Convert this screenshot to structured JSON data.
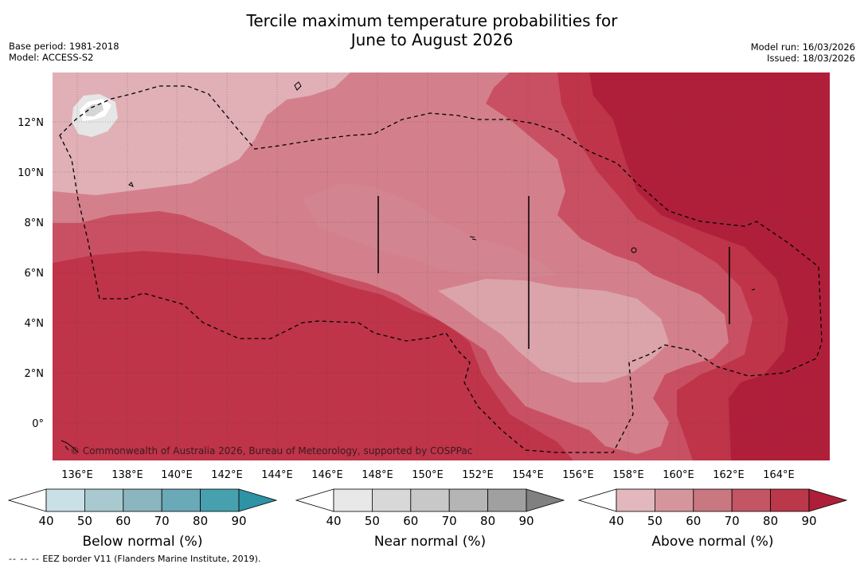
{
  "title": {
    "line1": "Tercile maximum temperature probabilities for",
    "line2": "June to August 2026"
  },
  "meta": {
    "base_period": "Base period: 1981-2018",
    "model": "Model: ACCESS-S2",
    "model_run": "Model run: 16/03/2026",
    "issued": "Issued: 18/03/2026"
  },
  "map": {
    "copyright": "© Commonwealth of Australia 2026, Bureau of Meteorology, supported by COSPPac",
    "lon_labels": [
      "136°E",
      "138°E",
      "140°E",
      "142°E",
      "144°E",
      "146°E",
      "148°E",
      "150°E",
      "152°E",
      "154°E",
      "156°E",
      "158°E",
      "160°E",
      "162°E",
      "164°E"
    ],
    "lat_labels": [
      "12°N",
      "10°N",
      "8°N",
      "6°N",
      "4°N",
      "2°N",
      "0°"
    ],
    "colors": {
      "ocean_90": "#b01f3a",
      "above_80": "#bf3448",
      "above_70": "#c95062",
      "above_60": "#d4808c",
      "above_50": "#e2b8bd",
      "near_40": "#e7e7e7",
      "pale": "#dfdfdf"
    }
  },
  "legends": [
    {
      "title": "Below normal (%)",
      "ticks": [
        "40",
        "50",
        "60",
        "70",
        "80",
        "90"
      ],
      "colors": [
        "#ffffff",
        "#c8e0e6",
        "#a8c9cf",
        "#8bb6c0",
        "#6aa9b7",
        "#47a0ae",
        "#2e93a4"
      ]
    },
    {
      "title": "Near normal (%)",
      "ticks": [
        "40",
        "50",
        "60",
        "70",
        "80",
        "90"
      ],
      "colors": [
        "#ffffff",
        "#e8e8e8",
        "#d8d8d8",
        "#c8c8c8",
        "#b5b5b5",
        "#a0a0a0",
        "#808080"
      ]
    },
    {
      "title": "Above normal (%)",
      "ticks": [
        "40",
        "50",
        "60",
        "70",
        "80",
        "90"
      ],
      "colors": [
        "#ffffff",
        "#e2b8bd",
        "#d4959d",
        "#c97780",
        "#c35565",
        "#bb374a",
        "#ad1f39"
      ]
    }
  ],
  "footnote": {
    "symbol": "-- -- --",
    "text": "EEZ border V11 (Flanders Marine Institute, 2019)."
  }
}
